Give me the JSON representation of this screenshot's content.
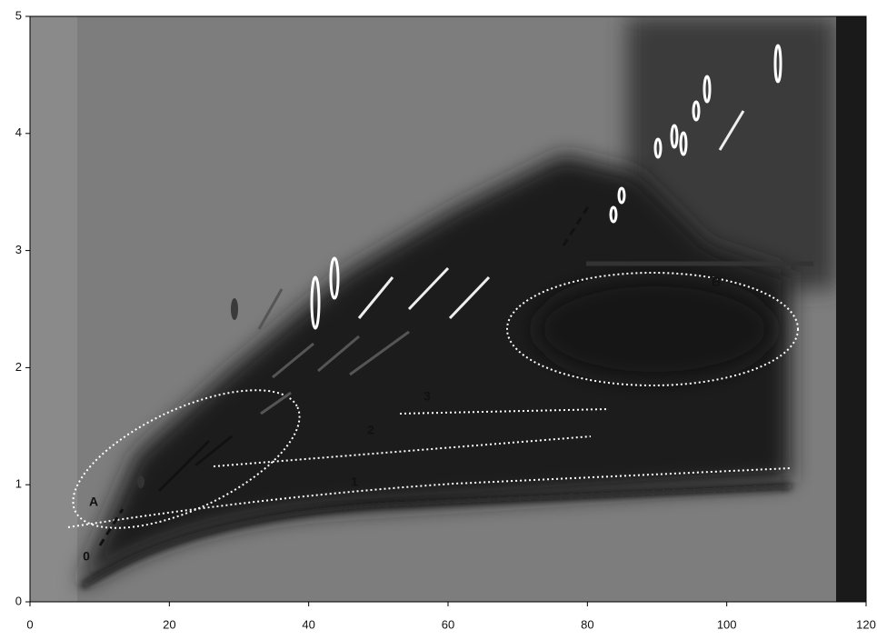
{
  "chart_data": {
    "type": "image",
    "xlim": [
      0,
      120
    ],
    "ylim": [
      0,
      5
    ],
    "xticks": [
      0,
      20,
      40,
      60,
      80,
      100,
      120
    ],
    "yticks": [
      0,
      1,
      2,
      3,
      4,
      5
    ],
    "annotations": [
      "A",
      "B",
      "0",
      "1",
      "2",
      "3"
    ]
  }
}
